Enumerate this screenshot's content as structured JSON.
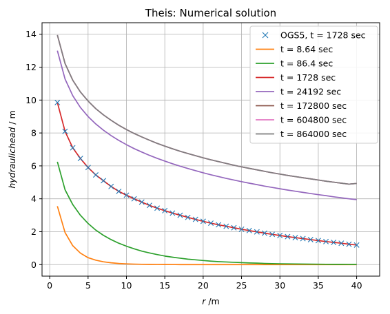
{
  "chart_data": {
    "type": "line",
    "title": "Theis: Numerical solution",
    "xlabel": "r /m",
    "xlabel_var": "r",
    "xlabel_unit": " /m",
    "ylabel": "hydraulichead / m",
    "ylabel_var": "hydraulichead",
    "ylabel_unit": " / m",
    "xlim": [
      -1,
      43
    ],
    "ylim": [
      -0.7,
      14.7
    ],
    "xticks": [
      0,
      5,
      10,
      15,
      20,
      25,
      30,
      35,
      40
    ],
    "yticks": [
      0,
      2,
      4,
      6,
      8,
      10,
      12,
      14
    ],
    "grid": true,
    "legend_position": "top-right",
    "x": [
      1,
      2,
      3,
      4,
      5,
      6,
      7,
      8,
      9,
      10,
      11,
      12,
      13,
      14,
      15,
      16,
      17,
      18,
      19,
      20,
      21,
      22,
      23,
      24,
      25,
      26,
      27,
      28,
      29,
      30,
      31,
      32,
      33,
      34,
      35,
      36,
      37,
      38,
      39,
      40
    ],
    "markers": {
      "name": "OGS5, t = 1728 sec",
      "marker": "x",
      "color": "#1f77b4",
      "y": [
        9.85,
        8.1,
        7.1,
        6.45,
        5.9,
        5.45,
        5.1,
        4.75,
        4.45,
        4.22,
        4.0,
        3.8,
        3.6,
        3.43,
        3.28,
        3.13,
        3.0,
        2.87,
        2.75,
        2.63,
        2.52,
        2.42,
        2.33,
        2.24,
        2.15,
        2.07,
        1.99,
        1.91,
        1.84,
        1.77,
        1.7,
        1.64,
        1.58,
        1.52,
        1.46,
        1.4,
        1.35,
        1.3,
        1.24,
        1.19
      ]
    },
    "series": [
      {
        "name": "t = 8.64 sec",
        "color": "#ff7f0e",
        "y": [
          3.55,
          1.95,
          1.15,
          0.7,
          0.42,
          0.27,
          0.17,
          0.11,
          0.07,
          0.045,
          0.03,
          0.02,
          0.012,
          0.008,
          0.005,
          0.003,
          0.002,
          0.001,
          0.001,
          0,
          0,
          0,
          0,
          0,
          0,
          0,
          0,
          0,
          0,
          0,
          0,
          0,
          0,
          0,
          0,
          0,
          0,
          0,
          0,
          0
        ]
      },
      {
        "name": "t = 86.4 sec",
        "color": "#2ca02c",
        "y": [
          6.25,
          4.55,
          3.65,
          3.0,
          2.5,
          2.1,
          1.78,
          1.52,
          1.3,
          1.12,
          0.96,
          0.82,
          0.71,
          0.61,
          0.52,
          0.45,
          0.39,
          0.33,
          0.29,
          0.25,
          0.21,
          0.18,
          0.16,
          0.14,
          0.12,
          0.1,
          0.09,
          0.07,
          0.06,
          0.05,
          0.045,
          0.04,
          0.035,
          0.03,
          0.025,
          0.02,
          0.018,
          0.015,
          0.013,
          0.011
        ]
      },
      {
        "name": "t = 1728 sec",
        "color": "#d62728",
        "y": [
          9.85,
          8.1,
          7.1,
          6.45,
          5.9,
          5.45,
          5.1,
          4.75,
          4.45,
          4.22,
          4.0,
          3.8,
          3.6,
          3.43,
          3.28,
          3.13,
          3.0,
          2.87,
          2.75,
          2.63,
          2.52,
          2.42,
          2.33,
          2.24,
          2.15,
          2.07,
          1.99,
          1.91,
          1.84,
          1.77,
          1.7,
          1.64,
          1.58,
          1.52,
          1.46,
          1.4,
          1.35,
          1.3,
          1.24,
          1.19
        ]
      },
      {
        "name": "t = 24192 sec",
        "color": "#9467bd",
        "y": [
          13.0,
          11.28,
          10.27,
          9.55,
          9.0,
          8.55,
          8.17,
          7.84,
          7.55,
          7.29,
          7.05,
          6.84,
          6.64,
          6.46,
          6.29,
          6.13,
          5.98,
          5.84,
          5.71,
          5.58,
          5.46,
          5.35,
          5.24,
          5.14,
          5.04,
          4.95,
          4.86,
          4.77,
          4.69,
          4.61,
          4.53,
          4.46,
          4.39,
          4.32,
          4.25,
          4.19,
          4.12,
          4.06,
          4.0,
          3.95
        ]
      },
      {
        "name": "t = 172800 sec",
        "color": "#8c564b",
        "y": [
          13.95,
          12.22,
          11.21,
          10.49,
          9.94,
          9.48,
          9.1,
          8.77,
          8.47,
          8.21,
          7.97,
          7.76,
          7.56,
          7.37,
          7.2,
          7.04,
          6.89,
          6.75,
          6.62,
          6.49,
          6.37,
          6.26,
          6.15,
          6.04,
          5.94,
          5.85,
          5.76,
          5.67,
          5.58,
          5.5,
          5.42,
          5.35,
          5.28,
          5.21,
          5.14,
          5.07,
          5.01,
          4.95,
          4.89,
          4.93
        ]
      },
      {
        "name": "t = 604800 sec",
        "color": "#e377c2",
        "y": [
          13.95,
          12.22,
          11.21,
          10.49,
          9.94,
          9.48,
          9.1,
          8.77,
          8.47,
          8.21,
          7.97,
          7.76,
          7.56,
          7.37,
          7.2,
          7.04,
          6.89,
          6.75,
          6.62,
          6.49,
          6.37,
          6.26,
          6.15,
          6.04,
          5.94,
          5.85,
          5.76,
          5.67,
          5.58,
          5.5,
          5.42,
          5.35,
          5.28,
          5.21,
          5.14,
          5.07,
          5.01,
          4.95,
          4.89,
          4.93
        ]
      },
      {
        "name": "t = 864000 sec",
        "color": "#7f7f7f",
        "y": [
          13.95,
          12.22,
          11.21,
          10.49,
          9.94,
          9.48,
          9.1,
          8.77,
          8.47,
          8.21,
          7.97,
          7.76,
          7.56,
          7.37,
          7.2,
          7.04,
          6.89,
          6.75,
          6.62,
          6.49,
          6.37,
          6.26,
          6.15,
          6.04,
          5.94,
          5.85,
          5.76,
          5.67,
          5.58,
          5.5,
          5.42,
          5.35,
          5.28,
          5.21,
          5.14,
          5.07,
          5.01,
          4.95,
          4.89,
          4.93
        ]
      }
    ]
  }
}
